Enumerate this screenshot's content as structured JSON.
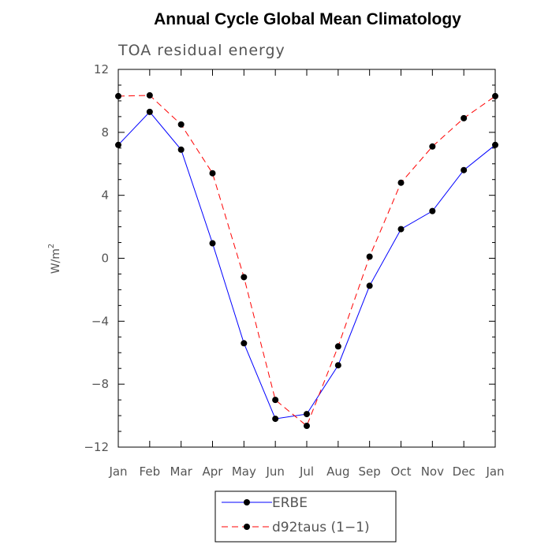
{
  "chart_data": {
    "type": "line",
    "title": "Annual Cycle Global Mean Climatology",
    "subtitle": "TOA residual energy",
    "xlabel": "",
    "ylabel": "W/m",
    "ylabel_superscript": "2",
    "categories": [
      "Jan",
      "Feb",
      "Mar",
      "Apr",
      "May",
      "Jun",
      "Jul",
      "Aug",
      "Sep",
      "Oct",
      "Nov",
      "Dec",
      "Jan"
    ],
    "ylim": [
      -12,
      12
    ],
    "yticks": [
      12,
      8,
      4,
      0,
      -4,
      -8,
      -12
    ],
    "ytick_labels": [
      "12",
      "8",
      "4",
      "0",
      "−4",
      "−8",
      "−12"
    ],
    "grid": false,
    "legend_position": "bottom-center",
    "series": [
      {
        "name": "ERBE",
        "color": "#0000ff",
        "dash": "solid",
        "marker": "circle",
        "values": [
          7.2,
          9.3,
          6.9,
          0.95,
          -5.4,
          -10.2,
          -9.9,
          -6.8,
          -1.75,
          1.85,
          3.0,
          5.6,
          7.2
        ]
      },
      {
        "name": "d92taus (1−1)",
        "color": "#ff0000",
        "dash": "dashed",
        "marker": "circle",
        "values": [
          10.3,
          10.35,
          8.5,
          5.4,
          -1.2,
          -9.0,
          -10.65,
          -5.6,
          0.1,
          4.8,
          7.1,
          8.9,
          10.3
        ]
      }
    ]
  }
}
